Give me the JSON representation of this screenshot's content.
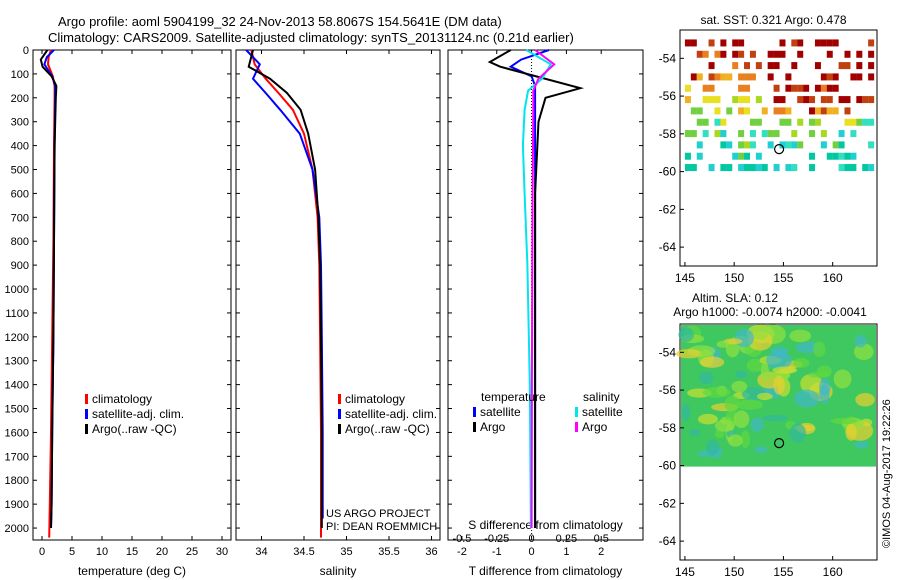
{
  "title_line1": "Argo profile: aoml 5904199_32 24-Nov-2013 58.8067S 154.5641E (DM data)",
  "title_line2": "Climatology: CARS2009. Satellite-adjusted climatology: synTS_20131124.nc (0.21d earlier)",
  "footer_project": "US ARGO PROJECT",
  "footer_pi": "PI: DEAN ROEMMICH",
  "footer_stamp": "©IMOS 04-Aug-2017 19:22:26",
  "colors": {
    "climatology": "#ff0000",
    "satellite": "#0000ff",
    "argo": "#000000",
    "sal_satellite": "#00e5ee",
    "sal_argo": "#ff00ff"
  },
  "chart_data": [
    {
      "type": "line",
      "xlabel": "temperature (deg C)",
      "xlim": [
        -1.5,
        31.5
      ],
      "ylim": [
        2050,
        0
      ],
      "yticks": [
        0,
        100,
        200,
        300,
        400,
        500,
        600,
        700,
        800,
        900,
        1000,
        1100,
        1200,
        1300,
        1400,
        1500,
        1600,
        1700,
        1800,
        1900,
        2000
      ],
      "xticks": [
        0,
        5,
        10,
        15,
        20,
        25,
        30
      ],
      "legend": [
        "climatology",
        "satellite-adj. clim.",
        "Argo(..raw -QC)"
      ],
      "series": [
        {
          "name": "climatology",
          "x": [
            1.5,
            1.1,
            1.0,
            1.8,
            2.1,
            2.1,
            2.0,
            1.9,
            1.7,
            1.5,
            1.3,
            1.2
          ],
          "y": [
            0,
            30,
            60,
            110,
            150,
            200,
            400,
            800,
            1200,
            1600,
            1900,
            2040
          ]
        },
        {
          "name": "satellite-adj. clim.",
          "x": [
            2.0,
            0.8,
            0.4,
            1.7,
            2.2,
            2.2,
            2.1,
            2.0,
            1.9,
            1.7,
            1.6,
            1.5
          ],
          "y": [
            0,
            30,
            60,
            110,
            150,
            200,
            400,
            800,
            1200,
            1600,
            1900,
            2000
          ]
        },
        {
          "name": "Argo(..raw -QC)",
          "x": [
            0.9,
            -0.2,
            0.1,
            1.6,
            2.4,
            2.3,
            2.1,
            2.0,
            1.9,
            1.7,
            1.6,
            1.5
          ],
          "y": [
            0,
            40,
            70,
            110,
            150,
            200,
            400,
            800,
            1200,
            1600,
            1900,
            2000
          ]
        }
      ]
    },
    {
      "type": "line",
      "xlabel": "salinity",
      "xlim": [
        33.7,
        36.1
      ],
      "ylim": [
        2050,
        0
      ],
      "xticks": [
        34,
        34.5,
        35,
        35.5,
        36
      ],
      "legend": [
        "climatology",
        "satellite-adj. clim.",
        "Argo(..raw -QC)"
      ],
      "series": [
        {
          "name": "climatology",
          "x": [
            33.88,
            33.92,
            34.05,
            34.2,
            34.37,
            34.5,
            34.6,
            34.66,
            34.68,
            34.69,
            34.7,
            34.7
          ],
          "y": [
            0,
            60,
            120,
            180,
            250,
            350,
            500,
            700,
            900,
            1200,
            1600,
            2040
          ]
        },
        {
          "name": "satellite-adj. clim.",
          "x": [
            33.82,
            33.98,
            33.9,
            34.05,
            34.22,
            34.45,
            34.6,
            34.68,
            34.7,
            34.71,
            34.72,
            34.72
          ],
          "y": [
            0,
            60,
            120,
            180,
            250,
            350,
            500,
            700,
            900,
            1200,
            1600,
            1960
          ]
        },
        {
          "name": "Argo(..raw -QC)",
          "x": [
            33.9,
            33.85,
            34.1,
            34.3,
            34.46,
            34.55,
            34.63,
            34.67,
            34.69,
            34.7,
            34.71,
            34.71
          ],
          "y": [
            0,
            70,
            120,
            180,
            250,
            350,
            500,
            700,
            900,
            1200,
            1600,
            2000
          ]
        }
      ]
    },
    {
      "type": "line",
      "xlabel": "T difference from climatology",
      "xlabel_top": "S difference from climatology",
      "xlim": [
        -2.4,
        3.2
      ],
      "ylim": [
        2050,
        0
      ],
      "xticks": [
        -2,
        -1,
        0,
        1,
        2
      ],
      "xticks_top": [
        -0.5,
        -0.25,
        0,
        0.25,
        0.5
      ],
      "xticks_top_labels": [
        "-0.5",
        "-0.25",
        "0",
        "0.25",
        "0.5"
      ],
      "legend_temperature_title": "temperature",
      "legend_salinity_title": "salinity",
      "legend": [
        "satellite",
        "Argo",
        "satellite",
        "Argo"
      ],
      "series": [
        {
          "name": "satellite",
          "x": [
            0.5,
            -0.3,
            -0.6,
            0.0,
            0.1,
            0.1,
            0.1,
            0.1,
            0.1,
            0.1
          ],
          "y": [
            0,
            40,
            70,
            110,
            150,
            300,
            600,
            1000,
            1500,
            2000
          ]
        },
        {
          "name": "Argo",
          "x": [
            -0.6,
            -1.2,
            -0.9,
            1.4,
            0.4,
            0.2,
            0.1,
            0.1,
            0.1,
            0.1
          ],
          "y": [
            0,
            50,
            70,
            160,
            200,
            300,
            600,
            1000,
            1500,
            2000
          ]
        },
        {
          "name": "satellite",
          "x": [
            -0.15,
            0.55,
            0.3,
            -0.1,
            -0.2,
            -0.25,
            -0.2,
            -0.12,
            -0.05,
            -0.02
          ],
          "y": [
            0,
            60,
            120,
            170,
            250,
            400,
            600,
            900,
            1400,
            2000
          ]
        },
        {
          "name": "Argo",
          "x": [
            0.1,
            0.65,
            0.2,
            0.05,
            0.05,
            0.04,
            0.03,
            0.02,
            0.01,
            0.0
          ],
          "y": [
            0,
            60,
            120,
            170,
            250,
            400,
            600,
            900,
            1400,
            2000
          ]
        }
      ]
    },
    {
      "type": "heatmap",
      "title": "sat. SST: 0.321  Argo: 0.478",
      "xlim": [
        144.5,
        164.5
      ],
      "ylim": [
        -65,
        -52.5
      ],
      "xticks": [
        145,
        150,
        155,
        160
      ],
      "yticks": [
        -54,
        -56,
        -58,
        -60,
        -62,
        -64
      ],
      "marker": {
        "lon": 154.56,
        "lat": -58.81
      }
    },
    {
      "type": "heatmap",
      "title": "Altim. SLA: 0.12",
      "subtitle": "Argo h1000: -0.0074 h2000: -0.0041",
      "xlim": [
        144.5,
        164.5
      ],
      "ylim": [
        -65,
        -52.5
      ],
      "xticks": [
        145,
        150,
        155,
        160
      ],
      "yticks": [
        -54,
        -56,
        -58,
        -60,
        -62,
        -64
      ],
      "marker": {
        "lon": 154.56,
        "lat": -58.81
      }
    }
  ]
}
